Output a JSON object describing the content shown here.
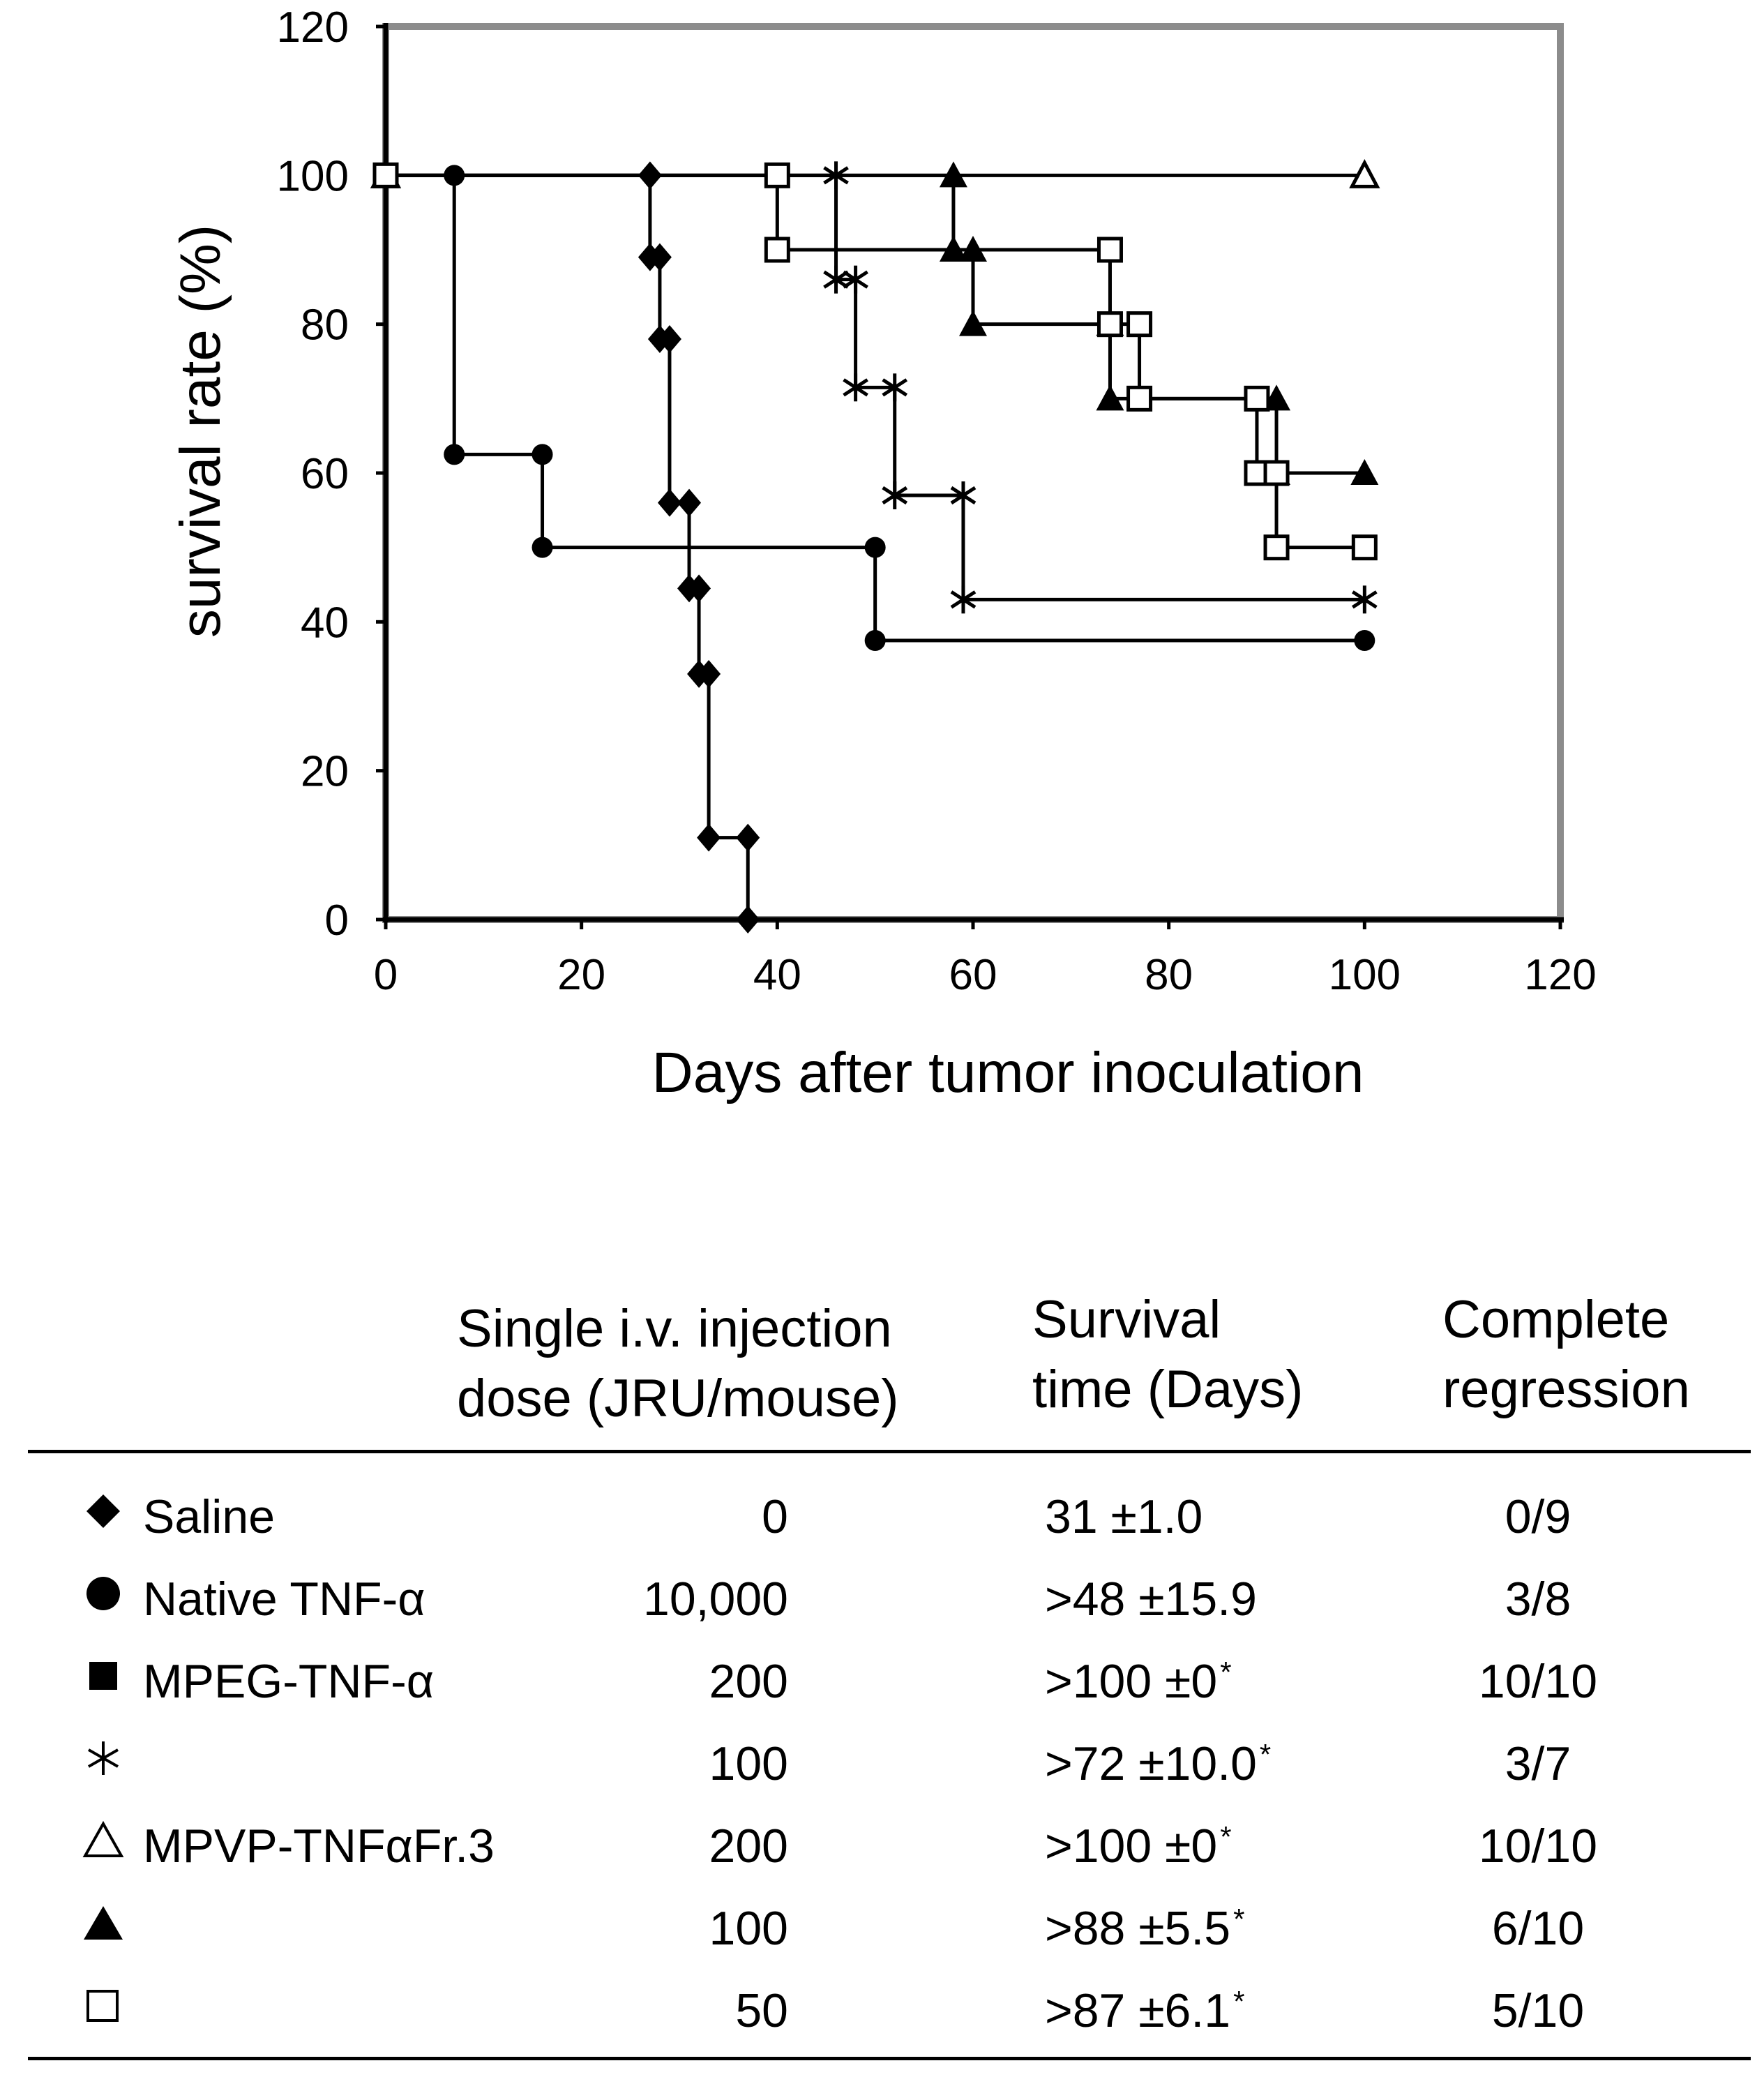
{
  "chart_data": {
    "type": "line",
    "subtype": "kaplan-meier step",
    "xlabel": "Days after tumor inoculation",
    "ylabel": "survival rate (%)",
    "xlim": [
      0,
      120
    ],
    "ylim": [
      0,
      120
    ],
    "xticks": [
      "0",
      "20",
      "40",
      "60",
      "80",
      "100",
      "120"
    ],
    "yticks": [
      "0",
      "20",
      "40",
      "60",
      "80",
      "100",
      "120"
    ],
    "grid": false,
    "series": [
      {
        "name": "Saline",
        "marker": "diamond",
        "points": [
          [
            0,
            100
          ],
          [
            27,
            100
          ],
          [
            27,
            89
          ],
          [
            28,
            89
          ],
          [
            28,
            78
          ],
          [
            29,
            78
          ],
          [
            29,
            56
          ],
          [
            31,
            56
          ],
          [
            31,
            44.5
          ],
          [
            32,
            44.5
          ],
          [
            32,
            33
          ],
          [
            33,
            33
          ],
          [
            33,
            11
          ],
          [
            37,
            11
          ],
          [
            37,
            0
          ]
        ]
      },
      {
        "name": "Native TNF-α",
        "marker": "circle",
        "points": [
          [
            0,
            100
          ],
          [
            7,
            100
          ],
          [
            7,
            62.5
          ],
          [
            16,
            62.5
          ],
          [
            16,
            50
          ],
          [
            50,
            50
          ],
          [
            50,
            37.5
          ],
          [
            100,
            37.5
          ]
        ]
      },
      {
        "name": "MPEG-TNF-α 100",
        "marker": "asterisk",
        "points": [
          [
            0,
            100
          ],
          [
            46,
            100
          ],
          [
            46,
            86
          ],
          [
            48,
            86
          ],
          [
            48,
            71.5
          ],
          [
            52,
            71.5
          ],
          [
            52,
            57
          ],
          [
            59,
            57
          ],
          [
            59,
            43
          ],
          [
            100,
            43
          ]
        ]
      },
      {
        "name": "MPVP-TNFαFr.3 200",
        "marker": "triangle-open",
        "points": [
          [
            0,
            100
          ],
          [
            100,
            100
          ]
        ]
      },
      {
        "name": "MPVP-TNFαFr.3 100",
        "marker": "triangle-filled",
        "points": [
          [
            0,
            100
          ],
          [
            58,
            100
          ],
          [
            58,
            90
          ],
          [
            60,
            90
          ],
          [
            60,
            80
          ],
          [
            74,
            80
          ],
          [
            74,
            70
          ],
          [
            91,
            70
          ],
          [
            91,
            60
          ],
          [
            100,
            60
          ]
        ]
      },
      {
        "name": "MPVP-TNFαFr.3 50",
        "marker": "square-open",
        "points": [
          [
            0,
            100
          ],
          [
            40,
            100
          ],
          [
            40,
            90
          ],
          [
            74,
            90
          ],
          [
            74,
            80
          ],
          [
            77,
            80
          ],
          [
            77,
            70
          ],
          [
            89,
            70
          ],
          [
            89,
            60
          ],
          [
            91,
            60
          ],
          [
            91,
            50
          ],
          [
            100,
            50
          ]
        ]
      }
    ]
  },
  "table": {
    "headers": {
      "dose_line1": "Single i.v. injection",
      "dose_line2": "dose (JRU/mouse)",
      "survival_line1": "Survival",
      "survival_line2": "time (Days)",
      "regression_line1": "Complete",
      "regression_line2": "regression"
    },
    "rows": [
      {
        "symbol": "diamond-filled-icon",
        "label": "Saline",
        "dose": "0",
        "survival": "31 ±1.0",
        "star": "",
        "regression": "0/9"
      },
      {
        "symbol": "circle-filled-icon",
        "label": "Native TNF-α",
        "dose": "10,000",
        "survival": ">48 ±15.9",
        "star": "",
        "regression": "3/8"
      },
      {
        "symbol": "square-filled-icon",
        "label": "MPEG-TNF-α",
        "dose": "200",
        "survival": ">100 ±0",
        "star": "*",
        "regression": "10/10"
      },
      {
        "symbol": "asterisk-icon",
        "label": "",
        "dose": "100",
        "survival": ">72 ±10.0",
        "star": "*",
        "regression": "3/7"
      },
      {
        "symbol": "triangle-open-icon",
        "label": "MPVP-TNFαFr.3",
        "dose": "200",
        "survival": ">100 ±0",
        "star": "*",
        "regression": "10/10"
      },
      {
        "symbol": "triangle-filled-icon",
        "label": "",
        "dose": "100",
        "survival": ">88 ±5.5",
        "star": "*",
        "regression": "6/10"
      },
      {
        "symbol": "square-open-icon",
        "label": "",
        "dose": "50",
        "survival": ">87 ±6.1",
        "star": "*",
        "regression": "5/10"
      }
    ]
  }
}
